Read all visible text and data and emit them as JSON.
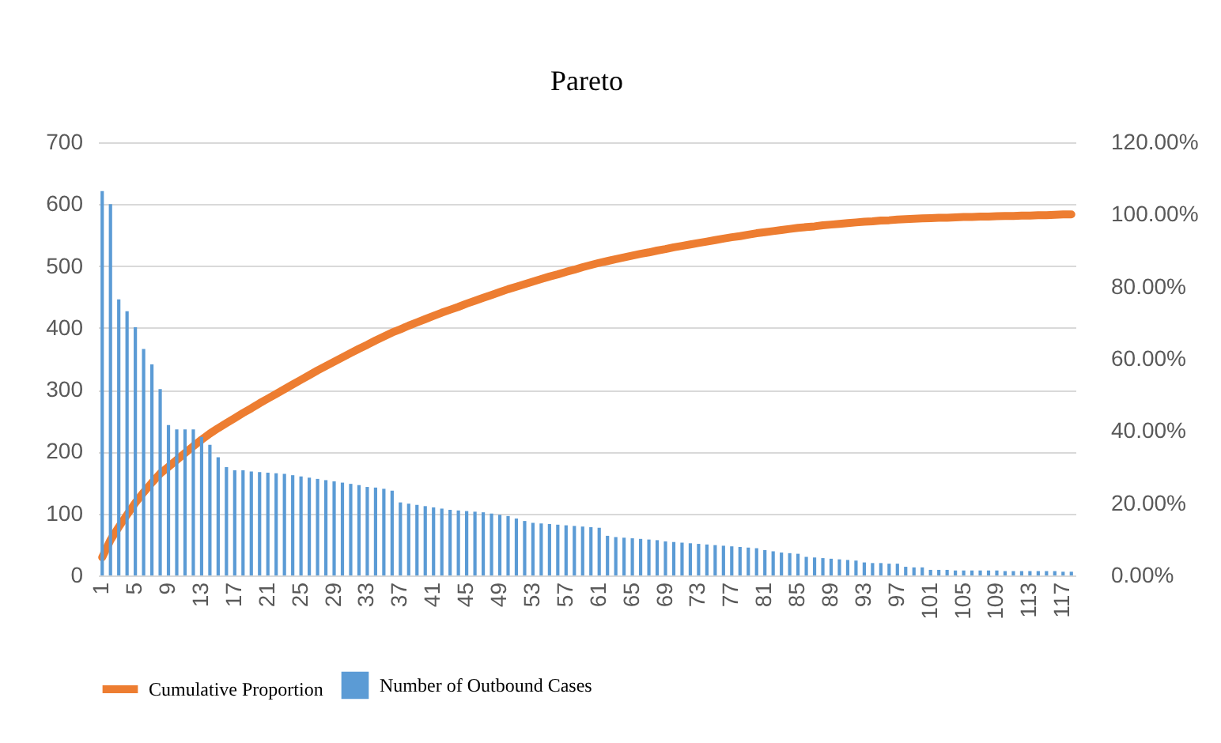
{
  "chart_data": {
    "type": "bar",
    "title": "Pareto",
    "legend": "bottom",
    "grid": "y",
    "categories": [
      "1",
      null,
      null,
      null,
      "5",
      null,
      null,
      null,
      "9",
      null,
      null,
      null,
      "13",
      null,
      null,
      null,
      "17",
      null,
      null,
      null,
      "21",
      null,
      null,
      null,
      "25",
      null,
      null,
      null,
      "29",
      null,
      null,
      null,
      "33",
      null,
      null,
      null,
      "37",
      null,
      null,
      null,
      "41",
      null,
      null,
      null,
      "45",
      null,
      null,
      null,
      "49",
      null,
      null,
      null,
      "53",
      null,
      null,
      null,
      "57",
      null,
      null,
      null,
      "61",
      null,
      null,
      null,
      "65",
      null,
      null,
      null,
      "69",
      null,
      null,
      null,
      "73",
      null,
      null,
      null,
      "77",
      null,
      null,
      null,
      "81",
      null,
      null,
      null,
      "85",
      null,
      null,
      null,
      "89",
      null,
      null,
      null,
      "93",
      null,
      null,
      null,
      "97",
      null,
      null,
      null,
      "101",
      null,
      null,
      null,
      "105",
      null,
      null,
      null,
      "109",
      null,
      null,
      null,
      "113",
      null,
      null,
      null,
      "117",
      null
    ],
    "ylim": [
      0,
      700
    ],
    "yticks": [
      0,
      100,
      200,
      300,
      400,
      500,
      600,
      700
    ],
    "y2lim": [
      0,
      120
    ],
    "y2ticks": [
      {
        "value": 0,
        "label": "0.00%"
      },
      {
        "value": 20,
        "label": "20.00%"
      },
      {
        "value": 40,
        "label": "40.00%"
      },
      {
        "value": 60,
        "label": "60.00%"
      },
      {
        "value": 80,
        "label": "80.00%"
      },
      {
        "value": 100,
        "label": "100.00%"
      },
      {
        "value": 120,
        "label": "120.00%"
      }
    ],
    "series": [
      {
        "name": "Number of Outbound Cases",
        "type": "bar",
        "color": "#5b9bd5",
        "values": [
          621,
          600,
          446,
          427,
          401,
          366,
          341,
          301,
          243,
          236,
          236,
          236,
          224,
          211,
          191,
          175,
          170,
          170,
          168,
          167,
          166,
          165,
          164,
          162,
          160,
          158,
          156,
          154,
          152,
          150,
          148,
          146,
          143,
          142,
          140,
          137,
          118,
          116,
          114,
          112,
          110,
          108,
          106,
          105,
          104,
          103,
          102,
          100,
          98,
          96,
          92,
          88,
          85,
          84,
          83,
          82,
          81,
          80,
          79,
          78,
          77,
          64,
          62,
          61,
          60,
          59,
          58,
          57,
          55,
          54,
          53,
          52,
          51,
          50,
          49,
          48,
          47,
          46,
          45,
          44,
          41,
          39,
          37,
          36,
          35,
          30,
          29,
          28,
          27,
          26,
          25,
          24,
          21,
          20,
          20,
          19,
          19,
          14,
          13,
          13,
          9,
          9,
          9,
          8,
          8,
          8,
          8,
          8,
          8,
          7,
          7,
          7,
          7,
          7,
          7,
          7,
          6,
          6
        ]
      },
      {
        "name": "Cumulative Proportion",
        "type": "line",
        "axis": "y2",
        "color": "#ed7d31",
        "values": [
          5.0,
          9.8,
          13.4,
          16.8,
          20.1,
          23.0,
          25.7,
          28.2,
          30.1,
          32.0,
          33.9,
          35.8,
          37.6,
          39.3,
          40.8,
          42.2,
          43.6,
          45.0,
          46.3,
          47.7,
          49.0,
          50.3,
          51.6,
          52.9,
          54.2,
          55.5,
          56.8,
          58.0,
          59.2,
          60.4,
          61.6,
          62.8,
          63.9,
          65.1,
          66.2,
          67.3,
          68.2,
          69.2,
          70.1,
          71.0,
          71.9,
          72.8,
          73.6,
          74.4,
          75.3,
          76.1,
          76.9,
          77.7,
          78.5,
          79.3,
          80.0,
          80.7,
          81.4,
          82.1,
          82.8,
          83.4,
          84.1,
          84.7,
          85.4,
          86.0,
          86.6,
          87.1,
          87.6,
          88.1,
          88.6,
          89.1,
          89.5,
          90.0,
          90.4,
          90.9,
          91.3,
          91.7,
          92.1,
          92.5,
          92.9,
          93.3,
          93.7,
          94.0,
          94.4,
          94.8,
          95.1,
          95.4,
          95.7,
          96.0,
          96.3,
          96.5,
          96.7,
          97.0,
          97.2,
          97.4,
          97.6,
          97.8,
          98.0,
          98.1,
          98.3,
          98.4,
          98.6,
          98.7,
          98.8,
          98.9,
          99.0,
          99.1,
          99.1,
          99.2,
          99.3,
          99.3,
          99.4,
          99.4,
          99.5,
          99.6,
          99.6,
          99.7,
          99.7,
          99.8,
          99.8,
          99.9,
          100.0,
          100.0
        ]
      }
    ]
  }
}
